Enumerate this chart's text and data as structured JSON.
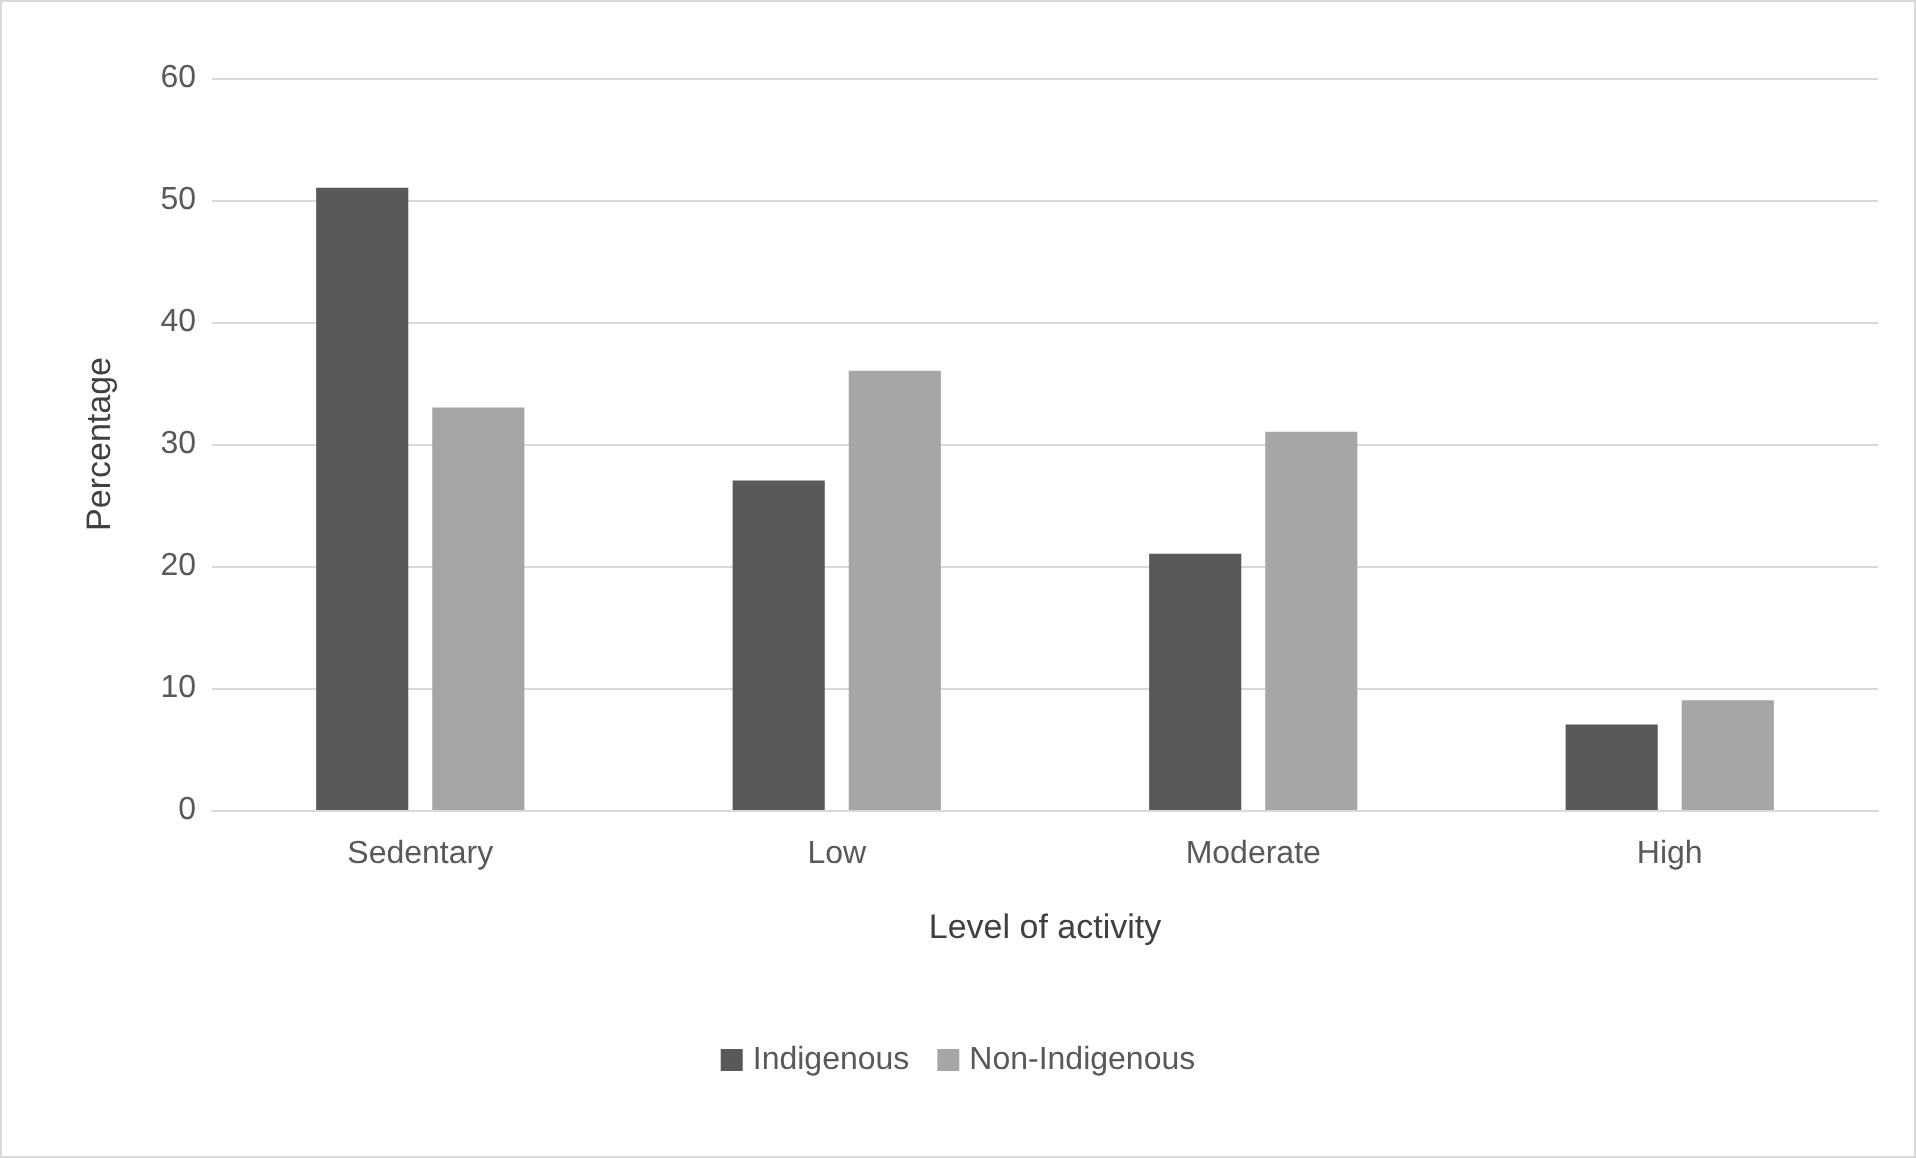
{
  "chart_data": {
    "type": "bar",
    "xlabel": "Level of activity",
    "ylabel": "Percentage",
    "categories": [
      "Sedentary",
      "Low",
      "Moderate",
      "High"
    ],
    "series": [
      {
        "name": "Indigenous",
        "color": "#595959",
        "values": [
          51,
          27,
          21,
          7
        ]
      },
      {
        "name": "Non-Indigenous",
        "color": "#a6a6a6",
        "values": [
          33,
          36,
          31,
          9
        ]
      }
    ],
    "ylim": [
      0,
      60
    ],
    "yticks": [
      0,
      10,
      20,
      30,
      40,
      50,
      60
    ],
    "grid": "y",
    "legend": "bottom"
  }
}
